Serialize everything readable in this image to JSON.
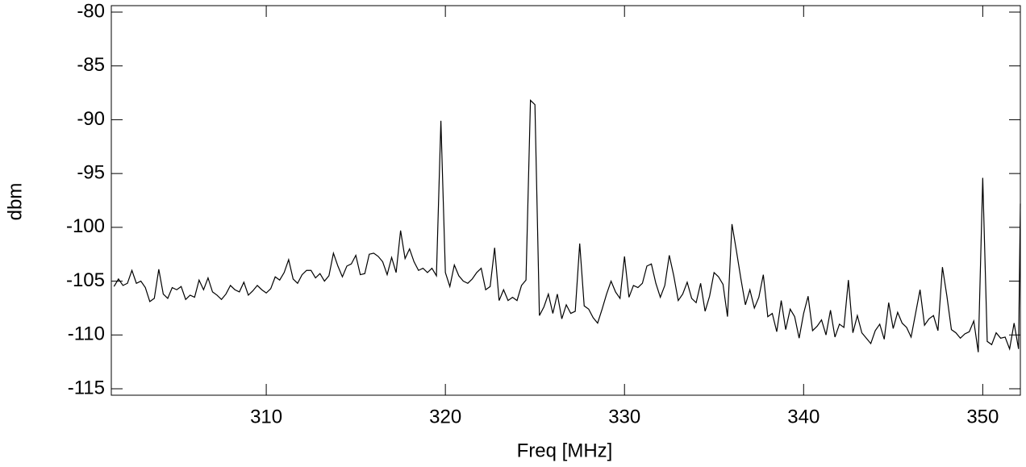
{
  "chart_data": {
    "type": "line",
    "xlabel": "Freq [MHz]",
    "ylabel": "dbm",
    "xlim": [
      301.35,
      352.1
    ],
    "ylim": [
      -115.6,
      -79.4
    ],
    "xticks": [
      310,
      320,
      330,
      340,
      350
    ],
    "yticks": [
      -115,
      -110,
      -105,
      -100,
      -95,
      -90,
      -85,
      -80
    ],
    "series": [
      {
        "color": "#000000",
        "x": [
          301.5,
          301.75,
          302,
          302.25,
          302.5,
          302.75,
          303,
          303.25,
          303.5,
          303.75,
          304,
          304.25,
          304.5,
          304.75,
          305,
          305.25,
          305.5,
          305.75,
          306,
          306.25,
          306.5,
          306.75,
          307,
          307.25,
          307.5,
          307.75,
          308,
          308.25,
          308.5,
          308.75,
          309,
          309.25,
          309.5,
          309.75,
          310,
          310.25,
          310.5,
          310.75,
          311,
          311.25,
          311.5,
          311.75,
          312,
          312.25,
          312.5,
          312.75,
          313,
          313.25,
          313.5,
          313.75,
          314,
          314.25,
          314.5,
          314.75,
          315,
          315.25,
          315.5,
          315.75,
          316,
          316.25,
          316.5,
          316.75,
          317,
          317.25,
          317.5,
          317.75,
          318,
          318.25,
          318.5,
          318.75,
          319,
          319.25,
          319.5,
          319.75,
          320,
          320.25,
          320.5,
          320.75,
          321,
          321.25,
          321.5,
          321.75,
          322,
          322.25,
          322.5,
          322.75,
          323,
          323.25,
          323.5,
          323.75,
          324,
          324.25,
          324.5,
          324.75,
          325,
          325.25,
          325.5,
          325.75,
          326,
          326.25,
          326.5,
          326.75,
          327,
          327.25,
          327.5,
          327.75,
          328,
          328.25,
          328.5,
          328.75,
          329,
          329.25,
          329.5,
          329.75,
          330,
          330.25,
          330.5,
          330.75,
          331,
          331.25,
          331.5,
          331.75,
          332,
          332.25,
          332.5,
          332.75,
          333,
          333.25,
          333.5,
          333.75,
          334,
          334.25,
          334.5,
          334.75,
          335,
          335.25,
          335.5,
          335.75,
          336,
          336.25,
          336.5,
          336.75,
          337,
          337.25,
          337.5,
          337.75,
          338,
          338.25,
          338.5,
          338.75,
          339,
          339.25,
          339.5,
          339.75,
          340,
          340.25,
          340.5,
          340.75,
          341,
          341.25,
          341.5,
          341.75,
          342,
          342.25,
          342.5,
          342.75,
          343,
          343.25,
          343.5,
          343.75,
          344,
          344.25,
          344.5,
          344.75,
          345,
          345.25,
          345.5,
          345.75,
          346,
          346.25,
          346.5,
          346.75,
          347,
          347.25,
          347.5,
          347.75,
          348,
          348.25,
          348.5,
          348.75,
          349,
          349.25,
          349.5,
          349.75,
          350,
          350.25,
          350.5,
          350.75,
          351,
          351.25,
          351.5,
          351.75,
          352,
          352.1
        ],
        "values": [
          -105.5,
          -104.8,
          -105.4,
          -105.2,
          -104.0,
          -105.2,
          -105.0,
          -105.6,
          -106.9,
          -106.6,
          -103.9,
          -106.2,
          -106.6,
          -105.6,
          -105.8,
          -105.5,
          -106.7,
          -106.3,
          -106.5,
          -104.9,
          -105.8,
          -104.7,
          -106.0,
          -106.3,
          -106.7,
          -106.2,
          -105.4,
          -105.8,
          -106.0,
          -105.1,
          -106.3,
          -105.9,
          -105.4,
          -105.8,
          -106.1,
          -105.7,
          -104.6,
          -104.9,
          -104.2,
          -103.0,
          -104.8,
          -105.2,
          -104.4,
          -104.0,
          -104.0,
          -104.7,
          -104.3,
          -105.0,
          -104.5,
          -102.4,
          -103.6,
          -104.6,
          -103.6,
          -103.4,
          -102.6,
          -104.4,
          -104.3,
          -102.5,
          -102.4,
          -102.7,
          -103.2,
          -104.4,
          -102.8,
          -104.2,
          -100.3,
          -102.9,
          -102.0,
          -103.2,
          -104.0,
          -103.8,
          -104.2,
          -103.8,
          -104.5,
          -90.1,
          -104.2,
          -105.5,
          -103.5,
          -104.5,
          -105.0,
          -105.2,
          -104.8,
          -104.2,
          -103.8,
          -105.8,
          -105.5,
          -101.9,
          -106.8,
          -105.8,
          -106.8,
          -106.5,
          -106.8,
          -105.4,
          -104.9,
          -88.2,
          -88.6,
          -108.2,
          -107.4,
          -106.2,
          -108.0,
          -106.2,
          -108.5,
          -107.2,
          -108.0,
          -107.8,
          -101.5,
          -107.3,
          -107.6,
          -108.4,
          -108.9,
          -107.6,
          -106.2,
          -105.0,
          -106.0,
          -106.6,
          -102.7,
          -106.5,
          -105.4,
          -105.6,
          -105.2,
          -103.6,
          -103.4,
          -105.2,
          -106.5,
          -105.4,
          -102.6,
          -104.5,
          -106.8,
          -106.2,
          -105.1,
          -106.6,
          -107.0,
          -105.2,
          -107.8,
          -106.4,
          -104.2,
          -104.6,
          -105.3,
          -108.3,
          -99.7,
          -102.2,
          -104.8,
          -107.2,
          -105.8,
          -107.5,
          -106.5,
          -104.4,
          -108.3,
          -108.0,
          -109.7,
          -106.8,
          -109.5,
          -107.6,
          -108.3,
          -110.3,
          -108.0,
          -106.4,
          -109.6,
          -109.2,
          -108.6,
          -110.0,
          -107.7,
          -110.2,
          -109.0,
          -109.3,
          -104.9,
          -109.8,
          -108.2,
          -109.8,
          -110.3,
          -110.8,
          -109.6,
          -109.0,
          -110.4,
          -107.0,
          -109.4,
          -107.9,
          -108.9,
          -109.3,
          -110.2,
          -108.0,
          -105.8,
          -109.1,
          -108.5,
          -108.2,
          -109.6,
          -103.7,
          -106.4,
          -109.5,
          -109.8,
          -110.3,
          -109.9,
          -109.7,
          -108.7,
          -111.6,
          -95.4,
          -110.6,
          -110.9,
          -109.8,
          -110.3,
          -110.2,
          -111.3,
          -108.9,
          -111.3,
          -97.8
        ]
      }
    ]
  }
}
